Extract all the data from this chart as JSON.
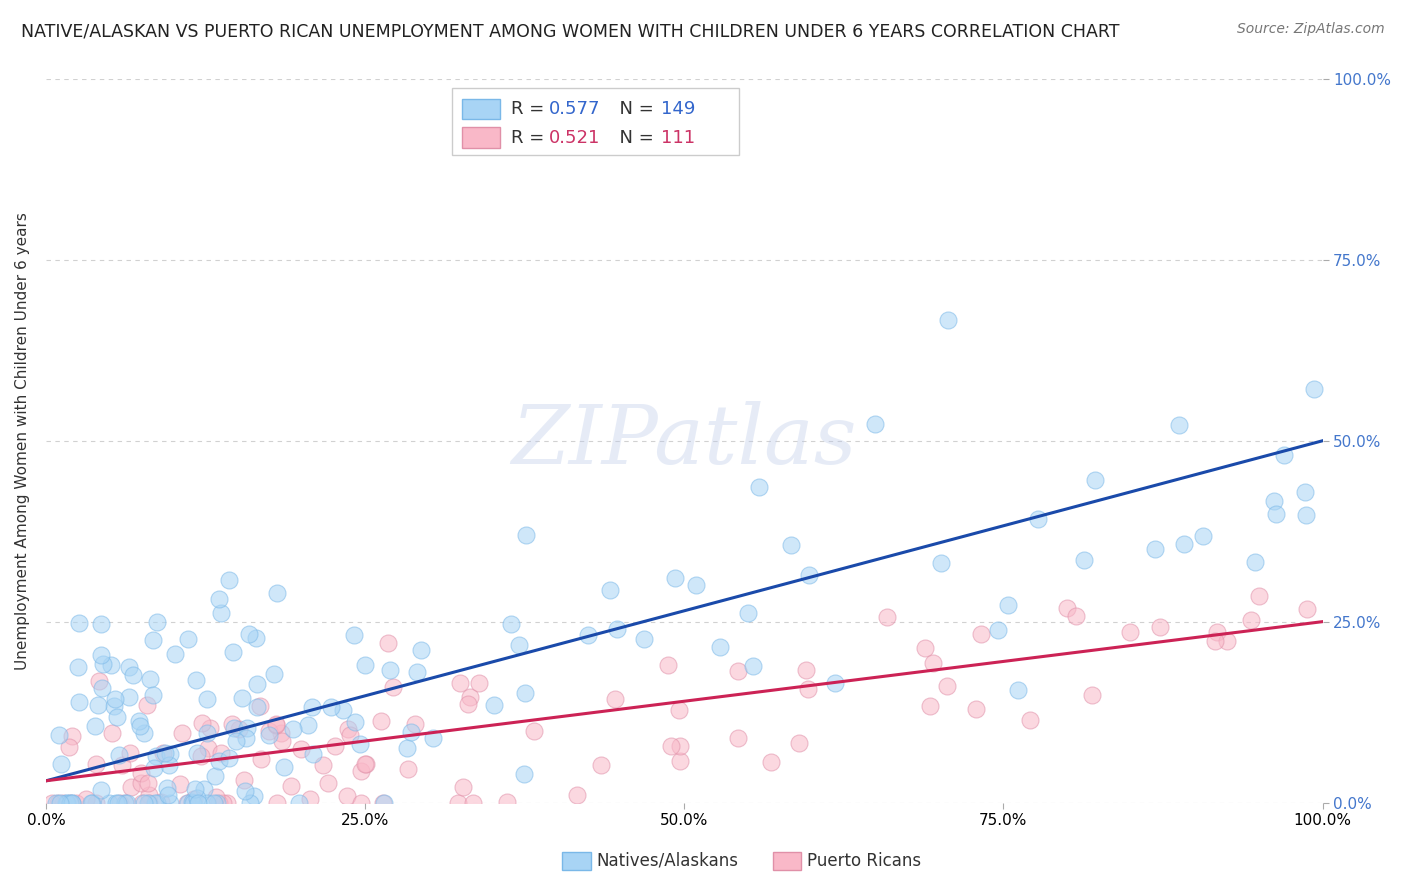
{
  "title": "NATIVE/ALASKAN VS PUERTO RICAN UNEMPLOYMENT AMONG WOMEN WITH CHILDREN UNDER 6 YEARS CORRELATION CHART",
  "source": "Source: ZipAtlas.com",
  "ylabel": "Unemployment Among Women with Children Under 6 years",
  "xlim": [
    0.0,
    1.0
  ],
  "ylim": [
    0.0,
    1.0
  ],
  "xticks": [
    0.0,
    0.25,
    0.5,
    0.75,
    1.0
  ],
  "xtick_labels": [
    "0.0%",
    "25.0%",
    "50.0%",
    "75.0%",
    "100.0%"
  ],
  "ytick_labels": [
    "",
    "25.0%",
    "50.0%",
    "75.0%",
    "100.0%"
  ],
  "right_ytick_labels": [
    "0.0%",
    "25.0%",
    "50.0%",
    "75.0%",
    "100.0%"
  ],
  "yticks": [
    0.0,
    0.25,
    0.5,
    0.75,
    1.0
  ],
  "native_R": 0.577,
  "native_N": 149,
  "puerto_R": 0.521,
  "puerto_N": 111,
  "native_color": "#a8d4f5",
  "native_edge_color": "#7ab8e8",
  "puerto_color": "#f9b8c8",
  "puerto_edge_color": "#e090a8",
  "native_line_color": "#1a4aaa",
  "puerto_line_color": "#cc2255",
  "watermark_color": "#b8c8e8",
  "background_color": "#ffffff",
  "grid_color": "#cccccc",
  "legend_label_native": "Natives/Alaskans",
  "legend_label_puerto": "Puerto Ricans",
  "title_fontsize": 12.5,
  "axis_label_fontsize": 11,
  "tick_fontsize": 11,
  "right_tick_color": "#4477cc",
  "seed": 42,
  "native_line_start_y": 0.03,
  "native_line_end_y": 0.5,
  "puerto_line_start_y": 0.03,
  "puerto_line_end_y": 0.25
}
